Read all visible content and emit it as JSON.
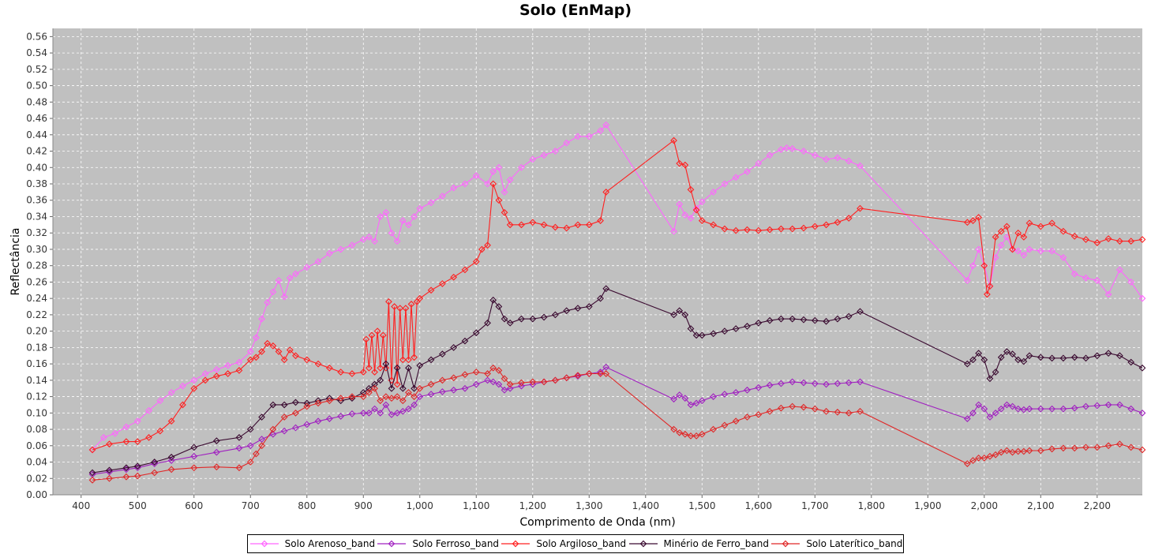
{
  "chart_data": {
    "type": "line",
    "title": "Solo (EnMap)",
    "xlabel": "Comprimento de Onda (nm)",
    "ylabel": "Reflectância",
    "xlim": [
      350,
      2280
    ],
    "ylim": [
      0,
      0.57
    ],
    "x_ticks": [
      "400",
      "500",
      "600",
      "700",
      "800",
      "900",
      "1,000",
      "1,100",
      "1,200",
      "1,300",
      "1,400",
      "1,500",
      "1,600",
      "1,700",
      "1,800",
      "1,900",
      "2,000",
      "2,100",
      "2,200"
    ],
    "x_tick_values": [
      400,
      500,
      600,
      700,
      800,
      900,
      1000,
      1100,
      1200,
      1300,
      1400,
      1500,
      1600,
      1700,
      1800,
      1900,
      2000,
      2100,
      2200
    ],
    "y_ticks": [
      "0.00",
      "0.02",
      "0.04",
      "0.06",
      "0.08",
      "0.10",
      "0.12",
      "0.14",
      "0.16",
      "0.18",
      "0.20",
      "0.22",
      "0.24",
      "0.26",
      "0.28",
      "0.30",
      "0.32",
      "0.34",
      "0.36",
      "0.38",
      "0.40",
      "0.42",
      "0.44",
      "0.46",
      "0.48",
      "0.50",
      "0.52",
      "0.54",
      "0.56"
    ],
    "y_tick_values": [
      0,
      0.02,
      0.04,
      0.06,
      0.08,
      0.1,
      0.12,
      0.14,
      0.16,
      0.18,
      0.2,
      0.22,
      0.24,
      0.26,
      0.28,
      0.3,
      0.32,
      0.34,
      0.36,
      0.38,
      0.4,
      0.42,
      0.44,
      0.46,
      0.48,
      0.5,
      0.52,
      0.54,
      0.56
    ],
    "grid": true,
    "legend_position": "bottom",
    "background": "#c0c0c0",
    "series": [
      {
        "name": "Solo Arenoso_band",
        "color": "#ff66ff",
        "x": [
          420,
          440,
          460,
          480,
          500,
          520,
          540,
          560,
          580,
          600,
          620,
          640,
          660,
          680,
          700,
          710,
          720,
          730,
          740,
          750,
          760,
          770,
          780,
          800,
          820,
          840,
          860,
          880,
          900,
          910,
          920,
          930,
          940,
          950,
          960,
          970,
          980,
          990,
          1000,
          1020,
          1040,
          1060,
          1080,
          1100,
          1120,
          1130,
          1140,
          1150,
          1160,
          1180,
          1200,
          1220,
          1240,
          1260,
          1280,
          1300,
          1320,
          1330,
          1450,
          1460,
          1470,
          1480,
          1490,
          1500,
          1520,
          1540,
          1560,
          1580,
          1600,
          1620,
          1640,
          1650,
          1660,
          1680,
          1700,
          1720,
          1740,
          1760,
          1780,
          1970,
          1980,
          1990,
          2000,
          2010,
          2020,
          2030,
          2040,
          2050,
          2060,
          2070,
          2080,
          2100,
          2120,
          2140,
          2160,
          2180,
          2200,
          2220,
          2240,
          2260,
          2280
        ],
        "values": [
          0.055,
          0.07,
          0.075,
          0.083,
          0.09,
          0.103,
          0.115,
          0.125,
          0.133,
          0.14,
          0.148,
          0.153,
          0.158,
          0.162,
          0.175,
          0.192,
          0.215,
          0.235,
          0.248,
          0.262,
          0.242,
          0.265,
          0.27,
          0.278,
          0.285,
          0.295,
          0.3,
          0.305,
          0.312,
          0.315,
          0.31,
          0.34,
          0.345,
          0.32,
          0.31,
          0.335,
          0.33,
          0.34,
          0.35,
          0.357,
          0.365,
          0.375,
          0.38,
          0.39,
          0.38,
          0.395,
          0.4,
          0.37,
          0.385,
          0.4,
          0.41,
          0.415,
          0.42,
          0.43,
          0.438,
          0.438,
          0.445,
          0.452,
          0.322,
          0.355,
          0.342,
          0.338,
          0.35,
          0.358,
          0.37,
          0.38,
          0.388,
          0.395,
          0.405,
          0.415,
          0.422,
          0.424,
          0.423,
          0.42,
          0.415,
          0.41,
          0.412,
          0.408,
          0.402,
          0.262,
          0.28,
          0.3,
          0.28,
          0.255,
          0.29,
          0.305,
          0.315,
          0.3,
          0.298,
          0.293,
          0.3,
          0.298,
          0.298,
          0.29,
          0.27,
          0.265,
          0.262,
          0.245,
          0.275,
          0.26,
          0.24
        ]
      },
      {
        "name": "Solo Ferroso_band",
        "color": "#a020c0",
        "x": [
          420,
          450,
          480,
          500,
          530,
          560,
          600,
          640,
          680,
          700,
          720,
          740,
          760,
          780,
          800,
          820,
          840,
          860,
          880,
          900,
          910,
          920,
          930,
          940,
          950,
          960,
          970,
          980,
          990,
          1000,
          1020,
          1040,
          1060,
          1080,
          1100,
          1120,
          1130,
          1140,
          1150,
          1160,
          1180,
          1200,
          1220,
          1240,
          1260,
          1280,
          1300,
          1320,
          1330,
          1450,
          1460,
          1470,
          1480,
          1490,
          1500,
          1520,
          1540,
          1560,
          1580,
          1600,
          1620,
          1640,
          1660,
          1680,
          1700,
          1720,
          1740,
          1760,
          1780,
          1970,
          1980,
          1990,
          2000,
          2010,
          2020,
          2030,
          2040,
          2050,
          2060,
          2070,
          2080,
          2100,
          2120,
          2140,
          2160,
          2180,
          2200,
          2220,
          2240,
          2260,
          2280
        ],
        "values": [
          0.025,
          0.028,
          0.031,
          0.033,
          0.038,
          0.042,
          0.047,
          0.052,
          0.057,
          0.06,
          0.068,
          0.074,
          0.078,
          0.082,
          0.086,
          0.09,
          0.093,
          0.096,
          0.099,
          0.1,
          0.1,
          0.105,
          0.1,
          0.11,
          0.098,
          0.1,
          0.102,
          0.105,
          0.11,
          0.12,
          0.123,
          0.126,
          0.128,
          0.13,
          0.135,
          0.14,
          0.138,
          0.135,
          0.128,
          0.13,
          0.133,
          0.135,
          0.138,
          0.14,
          0.143,
          0.145,
          0.148,
          0.15,
          0.156,
          0.117,
          0.122,
          0.118,
          0.11,
          0.112,
          0.115,
          0.12,
          0.123,
          0.125,
          0.128,
          0.131,
          0.134,
          0.136,
          0.138,
          0.137,
          0.136,
          0.135,
          0.136,
          0.137,
          0.138,
          0.093,
          0.1,
          0.11,
          0.105,
          0.095,
          0.1,
          0.105,
          0.11,
          0.108,
          0.105,
          0.104,
          0.105,
          0.105,
          0.105,
          0.105,
          0.106,
          0.108,
          0.109,
          0.11,
          0.11,
          0.105,
          0.1
        ]
      },
      {
        "name": "Solo Argiloso_band",
        "color": "#ff2020",
        "x": [
          420,
          450,
          480,
          500,
          520,
          540,
          560,
          580,
          600,
          620,
          640,
          660,
          680,
          700,
          710,
          720,
          730,
          740,
          750,
          760,
          770,
          780,
          800,
          820,
          840,
          860,
          880,
          900,
          905,
          910,
          915,
          920,
          925,
          930,
          935,
          940,
          945,
          950,
          955,
          960,
          965,
          970,
          975,
          980,
          985,
          990,
          995,
          1000,
          1020,
          1040,
          1060,
          1080,
          1100,
          1110,
          1120,
          1130,
          1140,
          1150,
          1160,
          1180,
          1200,
          1220,
          1240,
          1260,
          1280,
          1300,
          1320,
          1330,
          1450,
          1460,
          1470,
          1480,
          1490,
          1500,
          1520,
          1540,
          1560,
          1580,
          1600,
          1620,
          1640,
          1660,
          1680,
          1700,
          1720,
          1740,
          1760,
          1780,
          1970,
          1980,
          1990,
          2000,
          2005,
          2010,
          2020,
          2030,
          2040,
          2050,
          2060,
          2070,
          2080,
          2100,
          2120,
          2140,
          2160,
          2180,
          2200,
          2220,
          2240,
          2260,
          2280
        ],
        "values": [
          0.055,
          0.062,
          0.065,
          0.065,
          0.07,
          0.078,
          0.09,
          0.11,
          0.13,
          0.14,
          0.145,
          0.148,
          0.152,
          0.165,
          0.168,
          0.175,
          0.185,
          0.182,
          0.175,
          0.165,
          0.177,
          0.17,
          0.165,
          0.16,
          0.155,
          0.15,
          0.148,
          0.15,
          0.19,
          0.155,
          0.195,
          0.15,
          0.2,
          0.155,
          0.195,
          0.155,
          0.236,
          0.14,
          0.23,
          0.135,
          0.228,
          0.165,
          0.228,
          0.165,
          0.233,
          0.168,
          0.236,
          0.24,
          0.25,
          0.258,
          0.266,
          0.275,
          0.285,
          0.3,
          0.305,
          0.38,
          0.36,
          0.345,
          0.33,
          0.33,
          0.333,
          0.33,
          0.327,
          0.326,
          0.33,
          0.33,
          0.335,
          0.37,
          0.433,
          0.405,
          0.403,
          0.373,
          0.348,
          0.335,
          0.33,
          0.325,
          0.323,
          0.324,
          0.323,
          0.324,
          0.325,
          0.325,
          0.326,
          0.328,
          0.33,
          0.333,
          0.338,
          0.35,
          0.333,
          0.335,
          0.339,
          0.28,
          0.245,
          0.255,
          0.315,
          0.322,
          0.328,
          0.3,
          0.32,
          0.315,
          0.332,
          0.328,
          0.332,
          0.322,
          0.316,
          0.312,
          0.308,
          0.313,
          0.31,
          0.31,
          0.312
        ]
      },
      {
        "name": "Minério de Ferro_band",
        "color": "#3a0a30",
        "x": [
          420,
          450,
          480,
          500,
          530,
          560,
          600,
          640,
          680,
          700,
          720,
          740,
          760,
          780,
          800,
          820,
          840,
          860,
          880,
          900,
          910,
          920,
          930,
          940,
          950,
          960,
          970,
          980,
          990,
          1000,
          1020,
          1040,
          1060,
          1080,
          1100,
          1120,
          1130,
          1140,
          1150,
          1160,
          1180,
          1200,
          1220,
          1240,
          1260,
          1280,
          1300,
          1320,
          1330,
          1450,
          1460,
          1470,
          1480,
          1490,
          1500,
          1520,
          1540,
          1560,
          1580,
          1600,
          1620,
          1640,
          1660,
          1680,
          1700,
          1720,
          1740,
          1760,
          1780,
          1970,
          1980,
          1990,
          2000,
          2010,
          2020,
          2030,
          2040,
          2050,
          2060,
          2070,
          2080,
          2100,
          2120,
          2140,
          2160,
          2180,
          2200,
          2220,
          2240,
          2260,
          2280
        ],
        "values": [
          0.027,
          0.03,
          0.033,
          0.035,
          0.04,
          0.046,
          0.058,
          0.066,
          0.07,
          0.08,
          0.095,
          0.11,
          0.11,
          0.113,
          0.112,
          0.115,
          0.118,
          0.115,
          0.118,
          0.125,
          0.13,
          0.135,
          0.14,
          0.16,
          0.13,
          0.155,
          0.13,
          0.155,
          0.13,
          0.158,
          0.165,
          0.172,
          0.18,
          0.188,
          0.198,
          0.21,
          0.238,
          0.23,
          0.215,
          0.21,
          0.215,
          0.215,
          0.217,
          0.22,
          0.225,
          0.228,
          0.23,
          0.24,
          0.252,
          0.22,
          0.225,
          0.22,
          0.203,
          0.195,
          0.195,
          0.197,
          0.2,
          0.203,
          0.206,
          0.21,
          0.213,
          0.215,
          0.215,
          0.214,
          0.213,
          0.212,
          0.215,
          0.218,
          0.224,
          0.16,
          0.165,
          0.173,
          0.165,
          0.142,
          0.15,
          0.168,
          0.175,
          0.172,
          0.165,
          0.163,
          0.17,
          0.168,
          0.167,
          0.167,
          0.168,
          0.167,
          0.17,
          0.173,
          0.17,
          0.162,
          0.155
        ]
      },
      {
        "name": "Solo Laterítico_band",
        "color": "#e02828",
        "x": [
          420,
          450,
          480,
          500,
          530,
          560,
          600,
          640,
          680,
          700,
          710,
          720,
          740,
          760,
          780,
          800,
          820,
          840,
          860,
          880,
          900,
          910,
          920,
          930,
          940,
          950,
          960,
          970,
          980,
          990,
          1000,
          1020,
          1040,
          1060,
          1080,
          1100,
          1120,
          1130,
          1140,
          1150,
          1160,
          1180,
          1200,
          1220,
          1240,
          1260,
          1280,
          1300,
          1320,
          1330,
          1450,
          1460,
          1470,
          1480,
          1490,
          1500,
          1520,
          1540,
          1560,
          1580,
          1600,
          1620,
          1640,
          1660,
          1680,
          1700,
          1720,
          1740,
          1760,
          1780,
          1970,
          1980,
          1990,
          2000,
          2010,
          2020,
          2030,
          2040,
          2050,
          2060,
          2070,
          2080,
          2100,
          2120,
          2140,
          2160,
          2180,
          2200,
          2220,
          2240,
          2260,
          2280
        ],
        "values": [
          0.018,
          0.02,
          0.022,
          0.023,
          0.027,
          0.031,
          0.033,
          0.034,
          0.033,
          0.04,
          0.05,
          0.06,
          0.08,
          0.095,
          0.1,
          0.108,
          0.112,
          0.115,
          0.118,
          0.12,
          0.12,
          0.125,
          0.13,
          0.115,
          0.12,
          0.118,
          0.12,
          0.115,
          0.125,
          0.12,
          0.13,
          0.135,
          0.14,
          0.143,
          0.147,
          0.15,
          0.148,
          0.155,
          0.152,
          0.142,
          0.135,
          0.137,
          0.138,
          0.138,
          0.14,
          0.143,
          0.146,
          0.148,
          0.148,
          0.148,
          0.08,
          0.076,
          0.074,
          0.072,
          0.072,
          0.074,
          0.08,
          0.085,
          0.09,
          0.095,
          0.098,
          0.102,
          0.106,
          0.108,
          0.107,
          0.105,
          0.102,
          0.101,
          0.1,
          0.102,
          0.038,
          0.042,
          0.045,
          0.045,
          0.047,
          0.049,
          0.052,
          0.054,
          0.052,
          0.053,
          0.053,
          0.054,
          0.054,
          0.056,
          0.057,
          0.057,
          0.058,
          0.058,
          0.06,
          0.062,
          0.058,
          0.055
        ]
      }
    ]
  }
}
